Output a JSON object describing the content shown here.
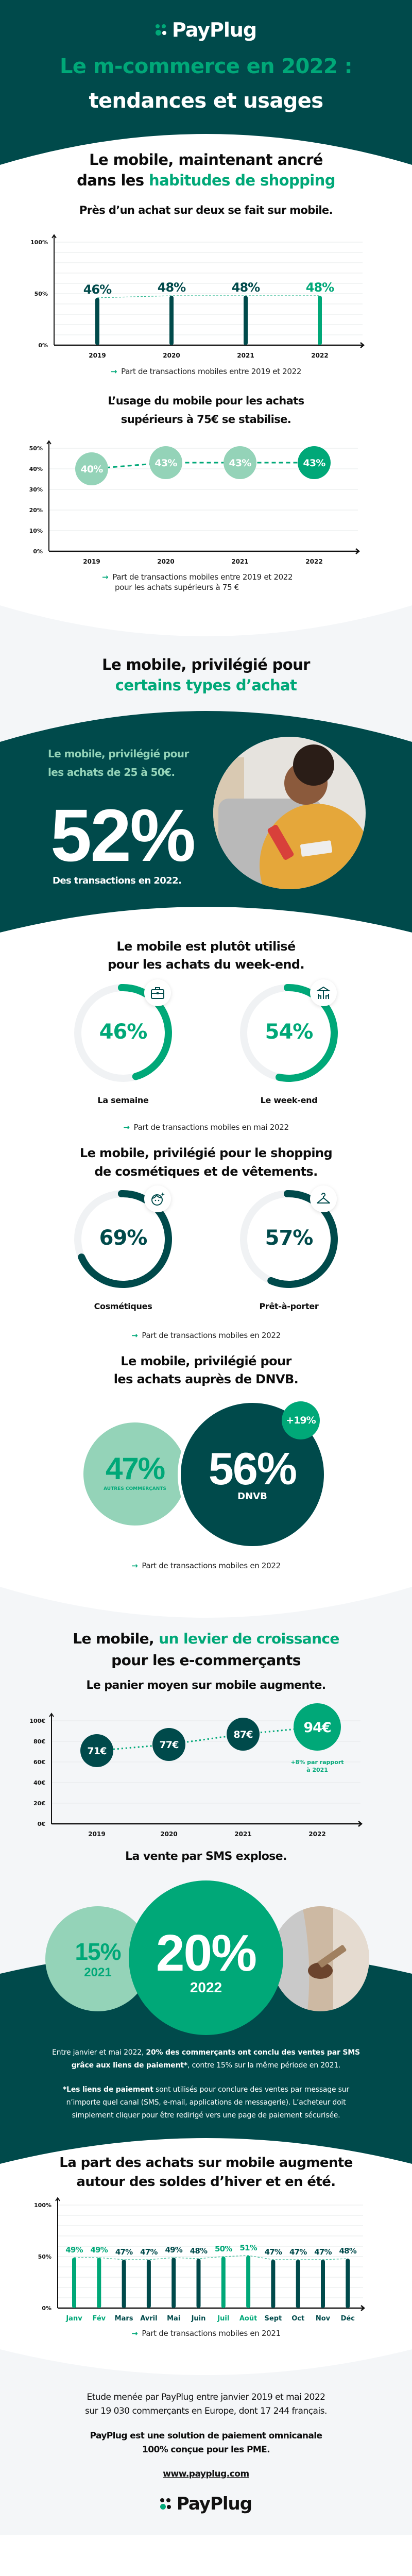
{
  "brand": {
    "name": "PayPlug",
    "colors": {
      "dark": "#004a4b",
      "green": "#00a878",
      "light_green": "#94d3b8",
      "light_bg": "#f4f6f8"
    }
  },
  "hero": {
    "title_line1": "Le m-commerce en 2022 :",
    "title_line2": "tendances et usages"
  },
  "section1": {
    "line1": "Le mobile, maintenant ancré",
    "line2_prefix": "dans les ",
    "line2_highlight": "habitudes de shopping"
  },
  "chart_data": [
    {
      "type": "bar",
      "title": "Près d’un achat sur deux se fait sur mobile.",
      "categories": [
        "2019",
        "2020",
        "2021",
        "2022"
      ],
      "values": [
        46,
        48,
        48,
        48
      ],
      "value_labels": [
        "46%",
        "48%",
        "48%",
        "48%"
      ],
      "ylim": [
        0,
        100
      ],
      "y_ticks": [
        0,
        50,
        100
      ],
      "y_tick_labels": [
        "0%",
        "50%",
        "100%"
      ],
      "grid": true,
      "highlighted": [
        "2022"
      ],
      "caption": "Part de transactions mobiles entre 2019 et 2022"
    },
    {
      "type": "line",
      "title_line1": "L’usage du mobile pour les achats",
      "title_line2": "supérieurs à 75€ se stabilise.",
      "categories": [
        "2019",
        "2020",
        "2021",
        "2022"
      ],
      "values": [
        40,
        43,
        43,
        43
      ],
      "value_labels": [
        "40%",
        "43%",
        "43%",
        "43%"
      ],
      "ylim": [
        0,
        50
      ],
      "y_ticks": [
        0,
        10,
        20,
        30,
        40,
        50
      ],
      "y_tick_labels": [
        "0%",
        "10%",
        "20%",
        "30%",
        "40%",
        "50%"
      ],
      "grid": true,
      "highlighted": [
        "2022"
      ],
      "caption_line1": "Part de transactions mobiles entre 2019 et 2022",
      "caption_line2": "pour les achats supérieurs à 75 €"
    },
    {
      "type": "line",
      "title": "Le panier moyen sur mobile augmente.",
      "categories": [
        "2019",
        "2020",
        "2021",
        "2022"
      ],
      "values": [
        71,
        77,
        87,
        94
      ],
      "value_labels": [
        "71€",
        "77€",
        "87€",
        "94€"
      ],
      "ylim": [
        0,
        100
      ],
      "y_ticks": [
        0,
        20,
        40,
        60,
        80,
        100
      ],
      "y_tick_labels": [
        "0€",
        "20€",
        "40€",
        "60€",
        "80€",
        "100€"
      ],
      "grid": true,
      "highlighted": [
        "2022"
      ],
      "annotation_line1": "+8% par rapport",
      "annotation_line2": "à 2021"
    },
    {
      "type": "bar",
      "title_line1": "La part des achats sur mobile augmente",
      "title_line2": "autour des soldes d’hiver et en été.",
      "categories": [
        "Janv",
        "Fév",
        "Mars",
        "Avril",
        "Mai",
        "Juin",
        "Juil",
        "Août",
        "Sept",
        "Oct",
        "Nov",
        "Déc"
      ],
      "values": [
        49,
        49,
        47,
        47,
        49,
        48,
        50,
        51,
        47,
        47,
        47,
        48
      ],
      "value_labels": [
        "49%",
        "49%",
        "47%",
        "47%",
        "49%",
        "48%",
        "50%",
        "51%",
        "47%",
        "47%",
        "47%",
        "48%"
      ],
      "ylim": [
        0,
        100
      ],
      "y_ticks": [
        0,
        50,
        100
      ],
      "y_tick_labels": [
        "0%",
        "50%",
        "100%"
      ],
      "grid": true,
      "highlighted": [
        "Janv",
        "Fév",
        "Juil",
        "Août"
      ],
      "caption": "Part de transactions mobiles en 2021"
    }
  ],
  "section2": {
    "line1": "Le mobile, privilégié pour",
    "line2_highlight": "certains types d’achat"
  },
  "card": {
    "line1": "Le mobile, privilégié pour",
    "line2": "les achats de 25 à 50€.",
    "stat": "52%",
    "stat_caption": "Des transactions en 2022."
  },
  "weekend": {
    "title_line1": "Le mobile est plutôt utilisé",
    "title_line2": "pour les achats du week-end.",
    "items": [
      {
        "value": "46%",
        "fraction": 0.46,
        "label": "La semaine",
        "icon": "briefcase-icon"
      },
      {
        "value": "54%",
        "fraction": 0.54,
        "label": "Le week-end",
        "icon": "parasol-icon"
      }
    ],
    "caption": "Part de transactions mobiles en mai 2022"
  },
  "categories": {
    "title_line1": "Le mobile, privilégié pour le shopping",
    "title_line2": "de cosmétiques et de vêtements.",
    "items": [
      {
        "value": "69%",
        "fraction": 0.69,
        "label": "Cosmétiques",
        "icon": "face-sparkle-icon"
      },
      {
        "value": "57%",
        "fraction": 0.57,
        "label": "Prêt-à-porter",
        "icon": "hanger-icon"
      }
    ],
    "caption": "Part de transactions mobiles en 2022"
  },
  "dnvb": {
    "title_line1": "Le mobile, privilégié pour",
    "title_line2": "les achats auprès de DNVB.",
    "others_value": "47%",
    "others_label": "AUTRES COMMERÇANTS",
    "dnvb_value": "56%",
    "dnvb_label": "DNVB",
    "growth": "+19%",
    "caption": "Part de transactions mobiles en 2022"
  },
  "section3": {
    "line1_prefix": "Le mobile, ",
    "line1_highlight": "un levier de croissance",
    "line2": "pour les e-commerçants"
  },
  "sms": {
    "title": "La vente par SMS explose.",
    "prev_value": "15%",
    "prev_year": "2021",
    "curr_value": "20%",
    "curr_year": "2022",
    "p1_a": "Entre janvier et mai 2022, ",
    "p1_b": "20% des commerçants ont conclu des ventes par SMS grâce aux liens de paiement*",
    "p1_c": ", contre 15% sur la même période en 2021.",
    "p2_a": "*Les liens de paiement",
    "p2_b": " sont utilisés pour conclure des ventes par message sur n’importe quel canal (SMS, e-mail, applications de messagerie). L’acheteur doit simplement cliquer pour être redirigé vers une page de paiement sécurisée."
  },
  "footer": {
    "study_line1": "Etude menée par PayPlug entre janvier 2019 et mai 2022",
    "study_line2": "sur 19 030 commerçants en Europe, dont 17 244 français.",
    "pitch_line1": "PayPlug est une solution de paiement omnicanale",
    "pitch_line2": "100% conçue pour les PME.",
    "url": "www.payplug.com"
  }
}
